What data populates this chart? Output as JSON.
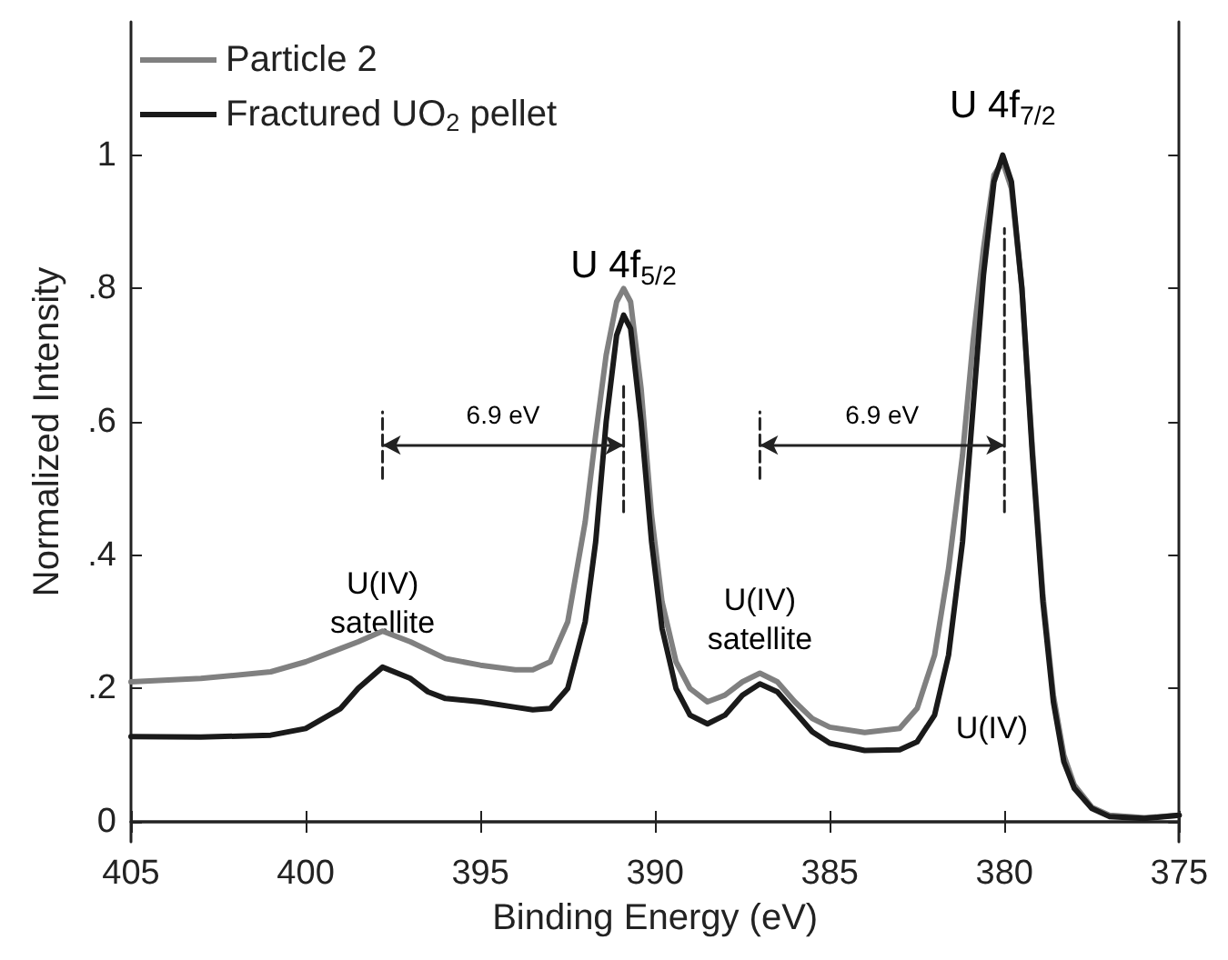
{
  "chart_data": {
    "type": "line",
    "xlabel": "Binding Energy (eV)",
    "ylabel": "Normalized Intensity",
    "xlim": [
      405,
      375
    ],
    "xticks": [
      405,
      400,
      395,
      390,
      385,
      380,
      375
    ],
    "ylim": [
      -0.03,
      1.2
    ],
    "yticks": [
      0,
      {
        "value": 0.2,
        "label": ".2"
      },
      {
        "value": 0.4,
        "label": ".4"
      },
      {
        "value": 0.6,
        "label": ".6"
      },
      {
        "value": 0.8,
        "label": ".8"
      },
      1
    ],
    "legend": "top left",
    "grid": false,
    "marker": "none",
    "line_style": "solid",
    "series": [
      {
        "name": "Particle 2",
        "color": "#808080",
        "x": [
          405,
          403,
          401,
          400,
          399,
          398.5,
          397.8,
          397,
          396,
          395,
          394,
          393.5,
          393,
          392.5,
          392,
          391.7,
          391.4,
          391.1,
          390.9,
          390.7,
          390.4,
          390.1,
          389.8,
          389.4,
          389,
          388.5,
          388,
          387.5,
          387,
          386.5,
          386,
          385.5,
          385,
          384,
          383,
          382.5,
          382,
          381.6,
          381.2,
          380.9,
          380.6,
          380.3,
          380.05,
          379.8,
          379.5,
          379.2,
          378.9,
          378.6,
          378.3,
          378,
          377.5,
          377,
          376,
          375
        ],
        "values": [
          0.21,
          0.215,
          0.225,
          0.24,
          0.26,
          0.27,
          0.286,
          0.27,
          0.245,
          0.235,
          0.228,
          0.228,
          0.24,
          0.3,
          0.45,
          0.58,
          0.7,
          0.78,
          0.8,
          0.78,
          0.65,
          0.46,
          0.33,
          0.24,
          0.2,
          0.18,
          0.19,
          0.21,
          0.223,
          0.21,
          0.18,
          0.155,
          0.142,
          0.134,
          0.14,
          0.17,
          0.25,
          0.38,
          0.55,
          0.72,
          0.86,
          0.97,
          0.99,
          0.95,
          0.8,
          0.56,
          0.34,
          0.19,
          0.1,
          0.055,
          0.022,
          0.01,
          0.006,
          0.01
        ]
      },
      {
        "name": "Fractured UO$_{2}$ pellet",
        "color": "#1a1a1a",
        "x": [
          405,
          403,
          401,
          400,
          399,
          398.5,
          397.8,
          397,
          396.5,
          396,
          395,
          394,
          393.5,
          393,
          392.5,
          392,
          391.7,
          391.4,
          391.1,
          390.9,
          390.7,
          390.4,
          390.1,
          389.8,
          389.4,
          389,
          388.5,
          388,
          387.5,
          387,
          386.5,
          386,
          385.5,
          385,
          384,
          383,
          382.5,
          382,
          381.6,
          381.2,
          380.9,
          380.6,
          380.3,
          380.05,
          379.8,
          379.5,
          379.2,
          378.9,
          378.6,
          378.3,
          378,
          377.5,
          377,
          376,
          375
        ],
        "values": [
          0.128,
          0.127,
          0.13,
          0.14,
          0.17,
          0.2,
          0.232,
          0.215,
          0.195,
          0.185,
          0.18,
          0.172,
          0.168,
          0.17,
          0.2,
          0.3,
          0.42,
          0.6,
          0.73,
          0.76,
          0.74,
          0.6,
          0.42,
          0.29,
          0.2,
          0.16,
          0.147,
          0.16,
          0.19,
          0.207,
          0.195,
          0.165,
          0.135,
          0.118,
          0.107,
          0.108,
          0.12,
          0.16,
          0.25,
          0.42,
          0.62,
          0.82,
          0.96,
          1.0,
          0.96,
          0.8,
          0.55,
          0.33,
          0.18,
          0.09,
          0.05,
          0.02,
          0.008,
          0.005,
          0.01
        ]
      },
      {
        "color": "#222222",
        "line_style": "dashed",
        "x": [
          397.8,
          397.8
        ],
        "values": [
          0.515,
          0.615
        ]
      },
      {
        "color": "#222222",
        "line_style": "dashed",
        "x": [
          390.9,
          390.9
        ],
        "values": [
          0.465,
          0.655
        ]
      },
      {
        "color": "#222222",
        "line_style": "dashed",
        "x": [
          387,
          387
        ],
        "values": [
          0.515,
          0.615
        ]
      },
      {
        "color": "#222222",
        "line_style": "dashed",
        "x": [
          380,
          380
        ],
        "values": [
          0.465,
          0.89
        ]
      }
    ],
    "annotations": [
      {
        "text": "U 4f$_{5/2}$",
        "x": 390.9,
        "y": 0.76
      },
      {
        "text": "U 4f$_{7/2}$",
        "x": 380.05,
        "y": 1.0
      },
      {
        "text": "U(IV)\nsatellite",
        "x": 397.8,
        "y": 0.232
      },
      {
        "text": "U(IV)\nsatellite",
        "x": 387,
        "y": 0.207
      },
      "6.9 eV",
      "6.9 eV",
      "U(IV)"
    ]
  }
}
